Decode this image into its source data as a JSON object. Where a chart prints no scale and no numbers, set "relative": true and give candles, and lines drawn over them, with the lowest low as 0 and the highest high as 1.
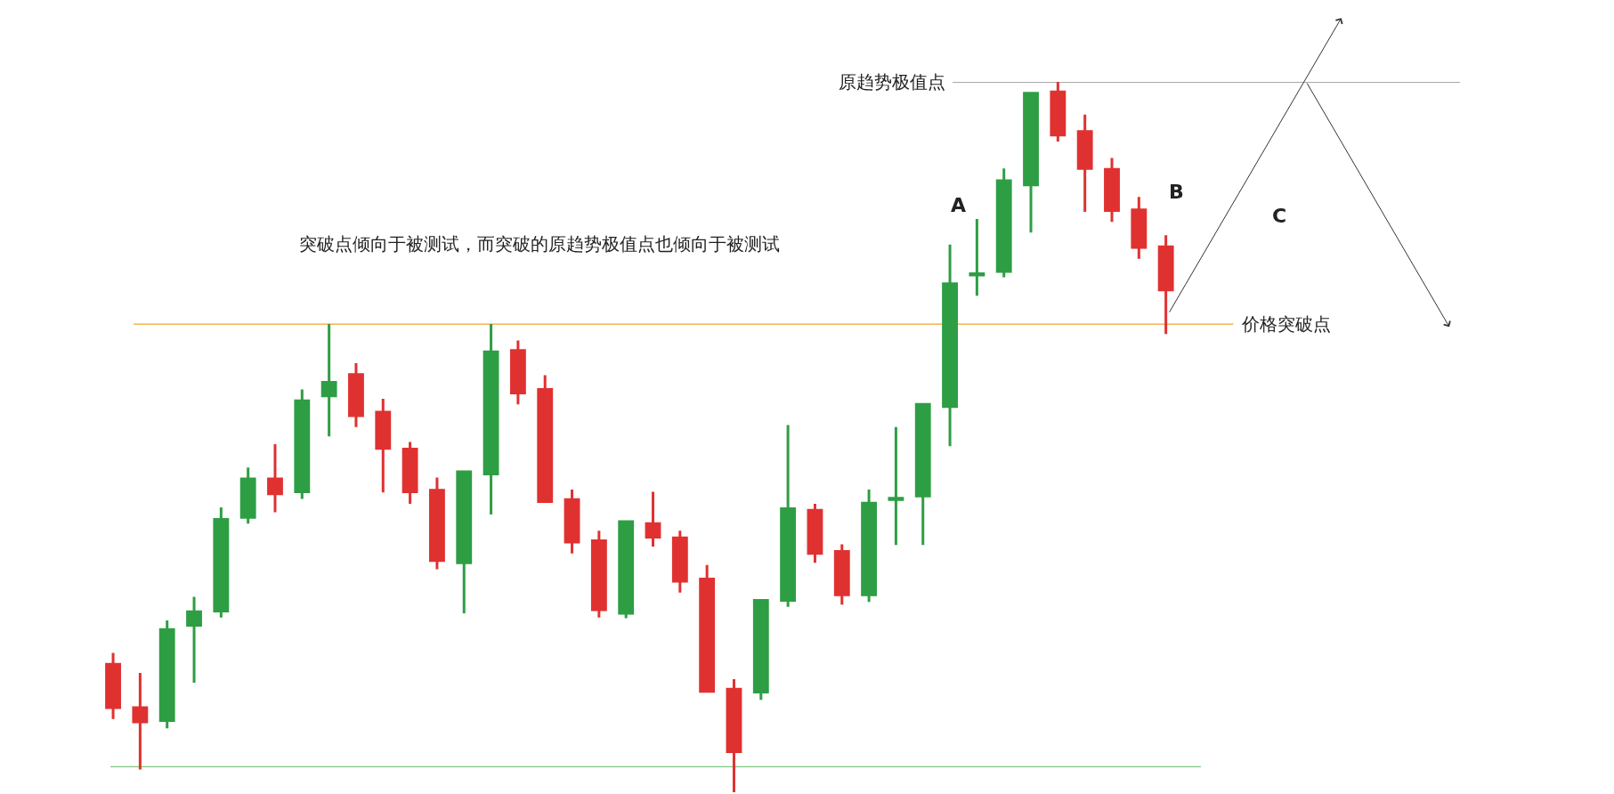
{
  "chart_data": {
    "type": "candlestick",
    "relative": true,
    "legend": false,
    "categories": [
      null,
      null,
      null,
      null,
      null,
      null,
      null,
      null,
      null,
      null,
      null,
      null,
      null,
      null,
      null,
      null,
      null,
      null,
      null,
      null,
      null,
      null,
      null,
      null,
      null,
      null,
      null,
      null,
      null,
      null,
      null,
      null,
      null,
      null,
      null,
      null,
      null,
      null,
      null,
      null
    ],
    "ohlc": [
      [
        0.18,
        0.196,
        0.103,
        0.119
      ],
      [
        0.119,
        0.168,
        0.032,
        0.099
      ],
      [
        0.101,
        0.242,
        0.09,
        0.229
      ],
      [
        0.235,
        0.275,
        0.154,
        0.254
      ],
      [
        0.255,
        0.401,
        0.246,
        0.384
      ],
      [
        0.387,
        0.457,
        0.378,
        0.441
      ],
      [
        0.441,
        0.49,
        0.394,
        0.42
      ],
      [
        0.423,
        0.567,
        0.413,
        0.551
      ],
      [
        0.558,
        0.659,
        0.501,
        0.577
      ],
      [
        0.588,
        0.604,
        0.514,
        0.53
      ],
      [
        0.535,
        0.554,
        0.422,
        0.484
      ],
      [
        0.483,
        0.493,
        0.406,
        0.423
      ],
      [
        0.425,
        0.443,
        0.314,
        0.326
      ],
      [
        0.323,
        0.451,
        0.252,
        0.451
      ],
      [
        0.448,
        0.659,
        0.391,
        0.62
      ],
      [
        0.622,
        0.636,
        0.546,
        0.562
      ],
      [
        0.567,
        0.587,
        0.409,
        0.409
      ],
      [
        0.412,
        0.426,
        0.336,
        0.352
      ],
      [
        0.354,
        0.368,
        0.246,
        0.257
      ],
      [
        0.252,
        0.381,
        0.245,
        0.381
      ],
      [
        0.378,
        0.423,
        0.346,
        0.359
      ],
      [
        0.358,
        0.368,
        0.281,
        0.297
      ],
      [
        0.3,
        0.32,
        0.142,
        0.142
      ],
      [
        0.145,
        0.159,
        0.0,
        0.057
      ],
      [
        0.141,
        0.27,
        0.13,
        0.27
      ],
      [
        0.27,
        0.517,
        0.261,
        0.399
      ],
      [
        0.397,
        0.406,
        0.323,
        0.336
      ],
      [
        0.339,
        0.349,
        0.264,
        0.278
      ],
      [
        0.278,
        0.426,
        0.268,
        0.407
      ],
      [
        0.412,
        0.514,
        0.348,
        0.414
      ],
      [
        0.417,
        0.546,
        0.348,
        0.546
      ],
      [
        0.543,
        0.771,
        0.487,
        0.716
      ],
      [
        0.728,
        0.807,
        0.699,
        0.73
      ],
      [
        0.733,
        0.878,
        0.725,
        0.861
      ],
      [
        0.855,
        0.984,
        0.788,
        0.984
      ],
      [
        0.986,
        1.0,
        0.916,
        0.925
      ],
      [
        0.93,
        0.954,
        0.817,
        0.878
      ],
      [
        0.877,
        0.893,
        0.803,
        0.819
      ],
      [
        0.82,
        0.838,
        0.751,
        0.767
      ],
      [
        0.768,
        0.784,
        0.645,
        0.707
      ]
    ],
    "colors": [
      "#e03131",
      "#e03131",
      "#2e9e44",
      "#2e9e44",
      "#2e9e44",
      "#2e9e44",
      "#e03131",
      "#2e9e44",
      "#2e9e44",
      "#e03131",
      "#e03131",
      "#e03131",
      "#e03131",
      "#2e9e44",
      "#2e9e44",
      "#e03131",
      "#e03131",
      "#e03131",
      "#e03131",
      "#2e9e44",
      "#e03131",
      "#e03131",
      "#e03131",
      "#e03131",
      "#2e9e44",
      "#2e9e44",
      "#e03131",
      "#e03131",
      "#2e9e44",
      "#2e9e44",
      "#2e9e44",
      "#2e9e44",
      "#2e9e44",
      "#2e9e44",
      "#2e9e44",
      "#e03131",
      "#e03131",
      "#e03131",
      "#e03131",
      "#e03131"
    ],
    "ref_lines": [
      {
        "axis": "y",
        "value": 0.659,
        "label": "价格突破点",
        "color": "#f5a524"
      },
      {
        "axis": "y",
        "value": 1.0,
        "label": "原趋势极值点",
        "color": "#555555"
      },
      {
        "axis": "y",
        "value": 0.036,
        "color": "#5cb85c"
      }
    ],
    "annotations": [
      "突破点倾向于被测试，而突破的原趋势极值点也倾向于被测试",
      "A",
      "B",
      "C"
    ]
  }
}
